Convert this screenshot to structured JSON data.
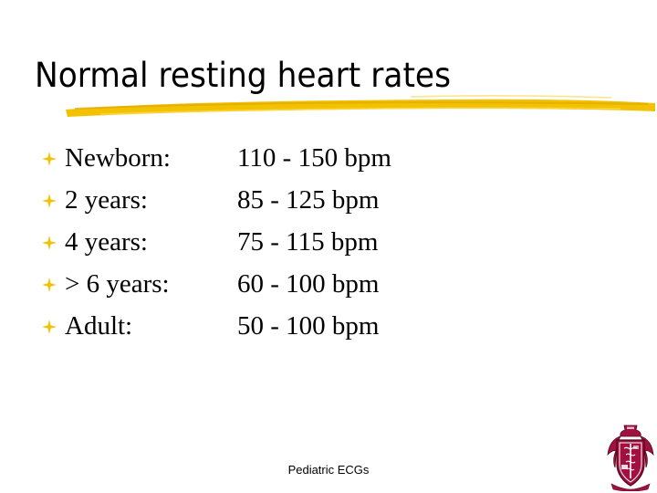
{
  "slide": {
    "title": "Normal resting heart rates",
    "footer": "Pediatric ECGs",
    "accent_color": "#F2C200",
    "seal_color": "#A01040"
  },
  "rows": [
    {
      "label": "Newborn:",
      "value": "110 - 150 bpm"
    },
    {
      "label": "2 years:",
      "value": "85 - 125 bpm"
    },
    {
      "label": "4 years:",
      "value": "75 - 115 bpm"
    },
    {
      "label": "> 6 years:",
      "value": "60 - 100 bpm"
    },
    {
      "label": "Adult:",
      "value": "50 - 100 bpm"
    }
  ],
  "icons": {
    "bullet": "sparkle-bullet-icon",
    "title_underline": "brush-stroke-underline",
    "seal": "medical-crest-logo"
  }
}
